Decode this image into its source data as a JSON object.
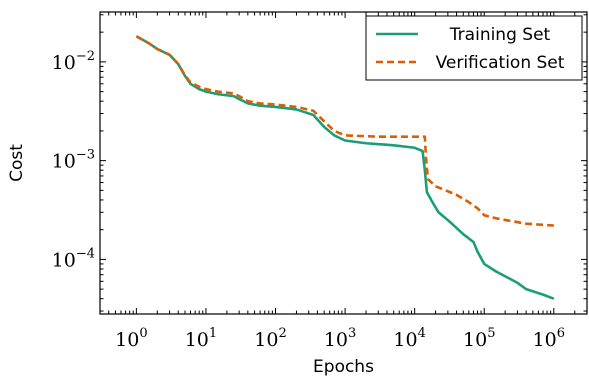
{
  "chart_data": {
    "type": "line",
    "xlabel": "Epochs",
    "ylabel": "Cost",
    "xscale": "log",
    "yscale": "log",
    "xlim": [
      0.3,
      3000000
    ],
    "ylim": [
      2.8e-05,
      0.032
    ],
    "grid": false,
    "legend_position": "top-right",
    "x_ticks": [
      {
        "value": 1,
        "base": "10",
        "exp": "0"
      },
      {
        "value": 10,
        "base": "10",
        "exp": "1"
      },
      {
        "value": 100,
        "base": "10",
        "exp": "2"
      },
      {
        "value": 1000,
        "base": "10",
        "exp": "3"
      },
      {
        "value": 10000,
        "base": "10",
        "exp": "4"
      },
      {
        "value": 100000,
        "base": "10",
        "exp": "5"
      },
      {
        "value": 1000000,
        "base": "10",
        "exp": "6"
      }
    ],
    "y_ticks": [
      {
        "value": 0.0001,
        "base": "10",
        "exp": "−4"
      },
      {
        "value": 0.001,
        "base": "10",
        "exp": "−3"
      },
      {
        "value": 0.01,
        "base": "10",
        "exp": "−2"
      }
    ],
    "series": [
      {
        "name": "Training Set",
        "color": "#1b9e77",
        "dash": "solid",
        "points": [
          [
            1,
            0.0182
          ],
          [
            1.5,
            0.0155
          ],
          [
            2,
            0.0135
          ],
          [
            3,
            0.0118
          ],
          [
            4,
            0.0095
          ],
          [
            5,
            0.0072
          ],
          [
            6,
            0.006
          ],
          [
            8,
            0.0053
          ],
          [
            10,
            0.005
          ],
          [
            15,
            0.0047
          ],
          [
            25,
            0.0045
          ],
          [
            30,
            0.0042
          ],
          [
            40,
            0.0038
          ],
          [
            60,
            0.0036
          ],
          [
            100,
            0.0035
          ],
          [
            200,
            0.0033
          ],
          [
            350,
            0.0029
          ],
          [
            500,
            0.0022
          ],
          [
            700,
            0.0018
          ],
          [
            1000,
            0.0016
          ],
          [
            2000,
            0.0015
          ],
          [
            5000,
            0.00143
          ],
          [
            10000,
            0.00135
          ],
          [
            13000,
            0.00125
          ],
          [
            14000,
            0.0008
          ],
          [
            15000,
            0.00048
          ],
          [
            18000,
            0.00038
          ],
          [
            22000,
            0.0003
          ],
          [
            30000,
            0.00025
          ],
          [
            50000,
            0.00018
          ],
          [
            70000,
            0.00015
          ],
          [
            80000,
            0.00012
          ],
          [
            100000,
            9e-05
          ],
          [
            150000,
            7.5e-05
          ],
          [
            300000,
            5.8e-05
          ],
          [
            400000,
            5e-05
          ],
          [
            700000,
            4.4e-05
          ],
          [
            1000000,
            4e-05
          ]
        ]
      },
      {
        "name": "Verification Set",
        "color": "#d95f02",
        "dash": "dashed",
        "points": [
          [
            1,
            0.0182
          ],
          [
            1.5,
            0.0155
          ],
          [
            2,
            0.0135
          ],
          [
            3,
            0.0118
          ],
          [
            4,
            0.0095
          ],
          [
            5,
            0.0073
          ],
          [
            6,
            0.0062
          ],
          [
            8,
            0.0056
          ],
          [
            10,
            0.0053
          ],
          [
            15,
            0.005
          ],
          [
            25,
            0.0048
          ],
          [
            30,
            0.0045
          ],
          [
            40,
            0.004
          ],
          [
            60,
            0.0038
          ],
          [
            100,
            0.0037
          ],
          [
            200,
            0.0035
          ],
          [
            350,
            0.0032
          ],
          [
            500,
            0.0025
          ],
          [
            700,
            0.002
          ],
          [
            1000,
            0.0018
          ],
          [
            3000,
            0.00175
          ],
          [
            10000,
            0.00175
          ],
          [
            14000,
            0.00175
          ],
          [
            14500,
            0.0011
          ],
          [
            15500,
            0.00065
          ],
          [
            20000,
            0.00055
          ],
          [
            40000,
            0.00045
          ],
          [
            60000,
            0.00038
          ],
          [
            80000,
            0.00033
          ],
          [
            100000,
            0.00028
          ],
          [
            150000,
            0.00026
          ],
          [
            400000,
            0.00023
          ],
          [
            1000000,
            0.00022
          ]
        ]
      }
    ]
  }
}
